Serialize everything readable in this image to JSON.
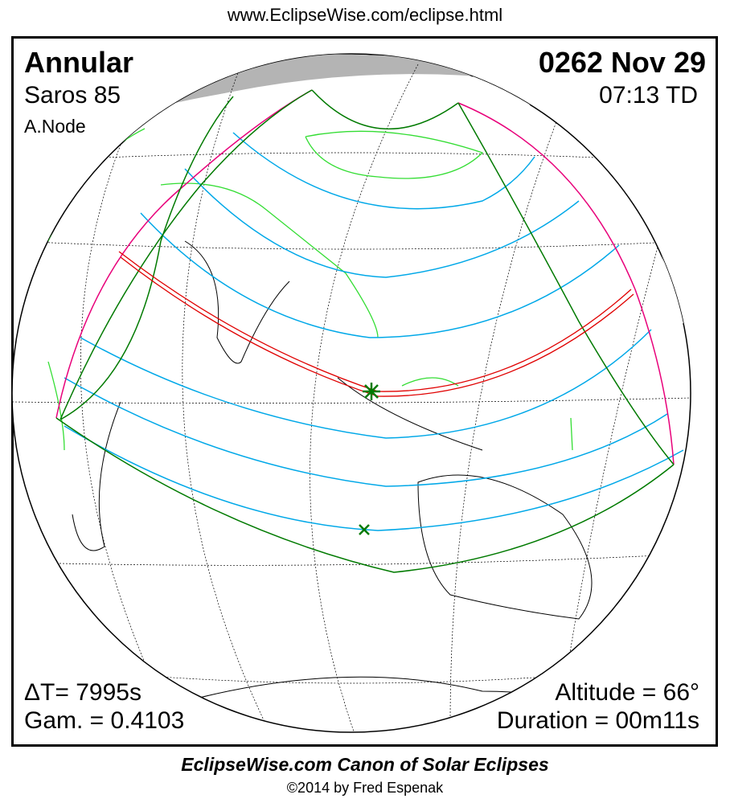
{
  "header": {
    "url": "www.EclipseWise.com/eclipse.html"
  },
  "eclipse": {
    "type": "Annular",
    "date": "0262 Nov 29",
    "saros": "Saros  85",
    "time": "07:13 TD",
    "node": "A.Node",
    "delta_t": "ΔT=   7995s",
    "gamma": "Gam. = 0.4103",
    "altitude": "Altitude = 66°",
    "duration": "Duration = 00m11s"
  },
  "footer": {
    "title": "EclipseWise.com Canon of Solar Eclipses",
    "copyright": "©2014 by Fred Espenak"
  },
  "colors": {
    "central_line": "#e00000",
    "penumbral_limits": "#007a00",
    "contours": "#00a8e8",
    "rise_set": "#e8007a",
    "coastlines_land": "#33dd33",
    "night": "#b4b4b4"
  },
  "markers": {
    "greatest_eclipse": "asterisk-icon",
    "subsolar": "x-icon"
  }
}
